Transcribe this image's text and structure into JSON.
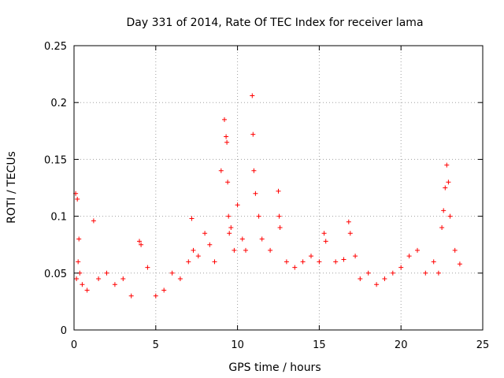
{
  "chart_data": {
    "type": "scatter",
    "title": "Day 331 of 2014, Rate Of TEC Index for receiver lama",
    "xlabel": "GPS time / hours",
    "ylabel": "ROTI / TECUs",
    "xlim": [
      0,
      25
    ],
    "ylim": [
      0,
      0.25
    ],
    "x_ticks": [
      0,
      5,
      10,
      15,
      20,
      25
    ],
    "y_ticks": [
      0,
      0.05,
      0.1,
      0.15,
      0.2,
      0.25
    ],
    "x_tick_labels": [
      "0",
      "5",
      "10",
      "15",
      "20",
      "25"
    ],
    "y_tick_labels": [
      "0",
      "0.05",
      "0.1",
      "0.15",
      "0.2",
      "0.25"
    ],
    "grid": true,
    "marker": "+",
    "series_color": "#ff0000",
    "series": [
      {
        "x": [
          0.1,
          0.2,
          0.3,
          0.25,
          0.15,
          0.35,
          0.5,
          0.8,
          1.2,
          1.5,
          2.0,
          2.5,
          3.0,
          3.5,
          4.0,
          4.1,
          4.5,
          5.0,
          5.5,
          6.0,
          6.5,
          7.0,
          7.2,
          7.3,
          7.6,
          8.0,
          8.3,
          8.6,
          9.0,
          9.2,
          9.3,
          9.35,
          9.4,
          9.45,
          9.5,
          9.6,
          9.8,
          10.0,
          10.3,
          10.5,
          10.9,
          10.95,
          11.0,
          11.1,
          11.3,
          11.5,
          12.0,
          12.5,
          12.55,
          12.6,
          13.0,
          13.5,
          14.0,
          14.5,
          15.0,
          15.3,
          15.4,
          16.0,
          16.5,
          16.8,
          16.9,
          17.2,
          17.5,
          18.0,
          18.5,
          19.0,
          19.5,
          20.0,
          20.5,
          21.0,
          21.5,
          22.0,
          22.3,
          22.5,
          22.6,
          22.7,
          22.8,
          22.9,
          23.0,
          23.3,
          23.6
        ],
        "y": [
          0.12,
          0.115,
          0.08,
          0.06,
          0.045,
          0.05,
          0.04,
          0.035,
          0.096,
          0.045,
          0.05,
          0.04,
          0.045,
          0.03,
          0.078,
          0.075,
          0.055,
          0.03,
          0.035,
          0.05,
          0.045,
          0.06,
          0.098,
          0.07,
          0.065,
          0.085,
          0.075,
          0.06,
          0.14,
          0.185,
          0.17,
          0.165,
          0.13,
          0.1,
          0.085,
          0.09,
          0.07,
          0.11,
          0.08,
          0.07,
          0.206,
          0.172,
          0.14,
          0.12,
          0.1,
          0.08,
          0.07,
          0.122,
          0.1,
          0.09,
          0.06,
          0.055,
          0.06,
          0.065,
          0.06,
          0.085,
          0.078,
          0.06,
          0.062,
          0.095,
          0.085,
          0.065,
          0.045,
          0.05,
          0.04,
          0.045,
          0.05,
          0.055,
          0.065,
          0.07,
          0.05,
          0.06,
          0.05,
          0.09,
          0.105,
          0.125,
          0.145,
          0.13,
          0.1,
          0.07,
          0.058
        ]
      }
    ]
  }
}
